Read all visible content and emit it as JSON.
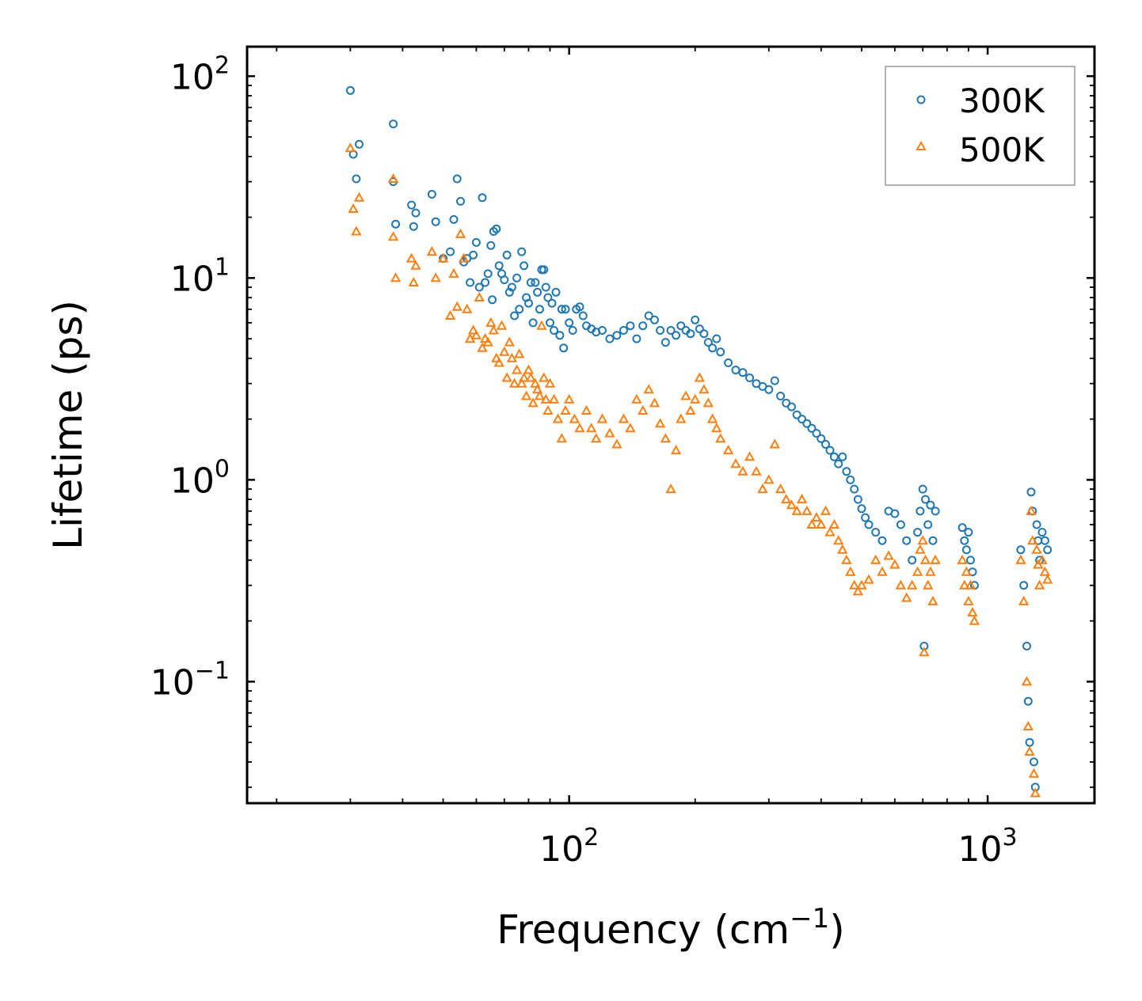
{
  "chart_data": {
    "type": "scatter",
    "title": "",
    "xlabel": "Frequency (cm",
    "xlabel_sup": "−1",
    "xlabel_end": ")",
    "ylabel": "Lifetime (ps)",
    "xscale": "log",
    "yscale": "log",
    "xlim": [
      17,
      1800
    ],
    "ylim": [
      0.025,
      140
    ],
    "x_ticks": [
      {
        "value": 100,
        "base": "10",
        "exp": "2"
      },
      {
        "value": 1000,
        "base": "10",
        "exp": "3"
      }
    ],
    "y_ticks": [
      {
        "value": 0.1,
        "base": "10",
        "exp": "−1"
      },
      {
        "value": 1,
        "base": "10",
        "exp": "0"
      },
      {
        "value": 10,
        "base": "10",
        "exp": "1"
      },
      {
        "value": 100,
        "base": "10",
        "exp": "2"
      }
    ],
    "legend_position": "top-right",
    "series": [
      {
        "name": "300K",
        "marker": "circle-open",
        "color": "#1f77b4",
        "points": [
          [
            30,
            85
          ],
          [
            30.5,
            41
          ],
          [
            31,
            31
          ],
          [
            31.5,
            46
          ],
          [
            38,
            58
          ],
          [
            38,
            30
          ],
          [
            38.5,
            18.5
          ],
          [
            42,
            23
          ],
          [
            43,
            21
          ],
          [
            42.5,
            18
          ],
          [
            47,
            26
          ],
          [
            48,
            19
          ],
          [
            50,
            12.5
          ],
          [
            52,
            13.5
          ],
          [
            53,
            19.5
          ],
          [
            54,
            31
          ],
          [
            55,
            24
          ],
          [
            56,
            12
          ],
          [
            57,
            12.5
          ],
          [
            58,
            9.5
          ],
          [
            59,
            13
          ],
          [
            60,
            15
          ],
          [
            61,
            9
          ],
          [
            62,
            25
          ],
          [
            63,
            9.5
          ],
          [
            64,
            10.5
          ],
          [
            65,
            14.5
          ],
          [
            65.5,
            7.8
          ],
          [
            66,
            17
          ],
          [
            67,
            17.5
          ],
          [
            68,
            11.5
          ],
          [
            69,
            10.5
          ],
          [
            70,
            9.8
          ],
          [
            71,
            13
          ],
          [
            72,
            8.5
          ],
          [
            73,
            9
          ],
          [
            74,
            6.5
          ],
          [
            75,
            10
          ],
          [
            76,
            7
          ],
          [
            77,
            13.5
          ],
          [
            78,
            11.5
          ],
          [
            79,
            8
          ],
          [
            80,
            7.5
          ],
          [
            81,
            9.5
          ],
          [
            82,
            6
          ],
          [
            83,
            9.5
          ],
          [
            84,
            8.5
          ],
          [
            85,
            7
          ],
          [
            86,
            11
          ],
          [
            87,
            11
          ],
          [
            88,
            9
          ],
          [
            89,
            8
          ],
          [
            90,
            6
          ],
          [
            91,
            7.5
          ],
          [
            92,
            5.5
          ],
          [
            93,
            8.5
          ],
          [
            95,
            5.2
          ],
          [
            96,
            7
          ],
          [
            97,
            4.5
          ],
          [
            98,
            7
          ],
          [
            100,
            6
          ],
          [
            102,
            5.5
          ],
          [
            104,
            7
          ],
          [
            106,
            7.2
          ],
          [
            108,
            6.5
          ],
          [
            110,
            5.8
          ],
          [
            113,
            5.6
          ],
          [
            116,
            5.4
          ],
          [
            120,
            5.5
          ],
          [
            125,
            5
          ],
          [
            130,
            5.2
          ],
          [
            135,
            5.5
          ],
          [
            140,
            5.8
          ],
          [
            145,
            5
          ],
          [
            150,
            5.8
          ],
          [
            155,
            6.5
          ],
          [
            160,
            6.2
          ],
          [
            165,
            5.5
          ],
          [
            170,
            4.8
          ],
          [
            175,
            5.5
          ],
          [
            180,
            5.2
          ],
          [
            185,
            5.8
          ],
          [
            190,
            5.5
          ],
          [
            195,
            5.3
          ],
          [
            200,
            6.2
          ],
          [
            205,
            5.6
          ],
          [
            210,
            5.3
          ],
          [
            215,
            4.8
          ],
          [
            220,
            4.5
          ],
          [
            225,
            5
          ],
          [
            230,
            4.3
          ],
          [
            240,
            3.8
          ],
          [
            250,
            3.5
          ],
          [
            260,
            3.4
          ],
          [
            270,
            3.2
          ],
          [
            280,
            3
          ],
          [
            290,
            2.9
          ],
          [
            300,
            2.8
          ],
          [
            310,
            3.1
          ],
          [
            320,
            2.6
          ],
          [
            330,
            2.4
          ],
          [
            340,
            2.3
          ],
          [
            350,
            2.1
          ],
          [
            360,
            2
          ],
          [
            370,
            1.9
          ],
          [
            380,
            1.8
          ],
          [
            390,
            1.7
          ],
          [
            400,
            1.6
          ],
          [
            410,
            1.5
          ],
          [
            420,
            1.4
          ],
          [
            430,
            1.3
          ],
          [
            440,
            1.2
          ],
          [
            450,
            1.3
          ],
          [
            460,
            1.1
          ],
          [
            470,
            1.0
          ],
          [
            480,
            0.9
          ],
          [
            490,
            0.8
          ],
          [
            500,
            0.72
          ],
          [
            510,
            0.65
          ],
          [
            520,
            0.6
          ],
          [
            540,
            0.55
          ],
          [
            560,
            0.5
          ],
          [
            580,
            0.7
          ],
          [
            600,
            0.68
          ],
          [
            620,
            0.6
          ],
          [
            640,
            0.5
          ],
          [
            660,
            0.4
          ],
          [
            680,
            0.55
          ],
          [
            690,
            0.7
          ],
          [
            700,
            0.9
          ],
          [
            705,
            0.15
          ],
          [
            710,
            0.8
          ],
          [
            720,
            0.6
          ],
          [
            730,
            0.75
          ],
          [
            740,
            0.5
          ],
          [
            750,
            0.7
          ],
          [
            870,
            0.58
          ],
          [
            880,
            0.5
          ],
          [
            890,
            0.45
          ],
          [
            900,
            0.55
          ],
          [
            910,
            0.4
          ],
          [
            920,
            0.35
          ],
          [
            930,
            0.3
          ],
          [
            1200,
            0.45
          ],
          [
            1220,
            0.3
          ],
          [
            1240,
            0.15
          ],
          [
            1250,
            0.08
          ],
          [
            1260,
            0.05
          ],
          [
            1270,
            0.87
          ],
          [
            1280,
            0.7
          ],
          [
            1290,
            0.04
          ],
          [
            1300,
            0.03
          ],
          [
            1310,
            0.6
          ],
          [
            1320,
            0.5
          ],
          [
            1330,
            0.4
          ],
          [
            1350,
            0.55
          ],
          [
            1370,
            0.5
          ],
          [
            1390,
            0.45
          ]
        ]
      },
      {
        "name": "500K",
        "marker": "triangle-open",
        "color": "#ff7f0e",
        "points": [
          [
            30,
            44
          ],
          [
            30.5,
            22
          ],
          [
            31,
            17
          ],
          [
            31.5,
            25
          ],
          [
            38,
            31
          ],
          [
            38,
            16
          ],
          [
            38.5,
            10
          ],
          [
            42,
            12.5
          ],
          [
            43,
            11.5
          ],
          [
            42.5,
            9.5
          ],
          [
            47,
            13.5
          ],
          [
            48,
            10
          ],
          [
            50,
            12.5
          ],
          [
            52,
            6.5
          ],
          [
            53,
            10.5
          ],
          [
            54,
            7.2
          ],
          [
            55,
            16.5
          ],
          [
            56,
            12.5
          ],
          [
            57,
            7
          ],
          [
            58,
            5
          ],
          [
            59,
            5.5
          ],
          [
            60,
            5.2
          ],
          [
            61,
            8
          ],
          [
            62,
            4.5
          ],
          [
            63,
            5
          ],
          [
            64,
            4.8
          ],
          [
            65,
            6
          ],
          [
            66,
            5.5
          ],
          [
            67,
            4
          ],
          [
            68,
            3.8
          ],
          [
            69,
            5.8
          ],
          [
            70,
            4.3
          ],
          [
            71,
            3.2
          ],
          [
            72,
            4.8
          ],
          [
            73,
            4
          ],
          [
            74,
            3
          ],
          [
            75,
            3.5
          ],
          [
            76,
            4.2
          ],
          [
            77,
            3
          ],
          [
            78,
            3.2
          ],
          [
            79,
            2.6
          ],
          [
            80,
            3.5
          ],
          [
            81,
            3.2
          ],
          [
            82,
            2.4
          ],
          [
            83,
            3
          ],
          [
            84,
            2.8
          ],
          [
            85,
            2.6
          ],
          [
            86,
            5.8
          ],
          [
            87,
            3.2
          ],
          [
            88,
            2.5
          ],
          [
            89,
            2.2
          ],
          [
            90,
            3
          ],
          [
            92,
            2.5
          ],
          [
            94,
            2
          ],
          [
            96,
            1.6
          ],
          [
            98,
            2.2
          ],
          [
            100,
            2.5
          ],
          [
            103,
            2
          ],
          [
            106,
            1.8
          ],
          [
            110,
            2.2
          ],
          [
            113,
            1.8
          ],
          [
            116,
            1.6
          ],
          [
            120,
            2
          ],
          [
            125,
            1.7
          ],
          [
            130,
            1.5
          ],
          [
            135,
            2
          ],
          [
            140,
            1.8
          ],
          [
            145,
            2.5
          ],
          [
            150,
            2.2
          ],
          [
            155,
            2.8
          ],
          [
            160,
            2.4
          ],
          [
            165,
            1.9
          ],
          [
            170,
            1.6
          ],
          [
            175,
            0.9
          ],
          [
            180,
            1.4
          ],
          [
            185,
            2
          ],
          [
            190,
            2.6
          ],
          [
            195,
            2.2
          ],
          [
            200,
            2.5
          ],
          [
            205,
            3.2
          ],
          [
            210,
            2.8
          ],
          [
            215,
            2.4
          ],
          [
            220,
            2
          ],
          [
            225,
            1.8
          ],
          [
            230,
            1.6
          ],
          [
            240,
            1.4
          ],
          [
            250,
            1.2
          ],
          [
            260,
            1.1
          ],
          [
            270,
            1.3
          ],
          [
            280,
            1.1
          ],
          [
            290,
            0.9
          ],
          [
            300,
            1.0
          ],
          [
            310,
            1.5
          ],
          [
            320,
            0.9
          ],
          [
            330,
            0.8
          ],
          [
            340,
            0.75
          ],
          [
            350,
            0.7
          ],
          [
            360,
            0.8
          ],
          [
            370,
            0.7
          ],
          [
            380,
            0.6
          ],
          [
            390,
            0.65
          ],
          [
            400,
            0.6
          ],
          [
            410,
            0.7
          ],
          [
            420,
            0.55
          ],
          [
            430,
            0.6
          ],
          [
            440,
            0.5
          ],
          [
            450,
            0.45
          ],
          [
            460,
            0.4
          ],
          [
            470,
            0.35
          ],
          [
            480,
            0.3
          ],
          [
            490,
            0.28
          ],
          [
            500,
            0.3
          ],
          [
            520,
            0.32
          ],
          [
            540,
            0.4
          ],
          [
            560,
            0.35
          ],
          [
            580,
            0.42
          ],
          [
            600,
            0.38
          ],
          [
            620,
            0.3
          ],
          [
            640,
            0.26
          ],
          [
            660,
            0.3
          ],
          [
            680,
            0.35
          ],
          [
            690,
            0.45
          ],
          [
            700,
            0.5
          ],
          [
            705,
            0.14
          ],
          [
            710,
            0.4
          ],
          [
            720,
            0.3
          ],
          [
            730,
            0.35
          ],
          [
            740,
            0.25
          ],
          [
            750,
            0.4
          ],
          [
            870,
            0.4
          ],
          [
            880,
            0.3
          ],
          [
            890,
            0.35
          ],
          [
            900,
            0.25
          ],
          [
            910,
            0.3
          ],
          [
            920,
            0.22
          ],
          [
            930,
            0.2
          ],
          [
            1200,
            0.4
          ],
          [
            1220,
            0.25
          ],
          [
            1240,
            0.1
          ],
          [
            1250,
            0.06
          ],
          [
            1260,
            0.045
          ],
          [
            1270,
            0.7
          ],
          [
            1280,
            0.5
          ],
          [
            1290,
            0.035
          ],
          [
            1300,
            0.028
          ],
          [
            1310,
            0.45
          ],
          [
            1320,
            0.38
          ],
          [
            1330,
            0.3
          ],
          [
            1350,
            0.4
          ],
          [
            1370,
            0.35
          ],
          [
            1390,
            0.32
          ]
        ]
      }
    ]
  }
}
